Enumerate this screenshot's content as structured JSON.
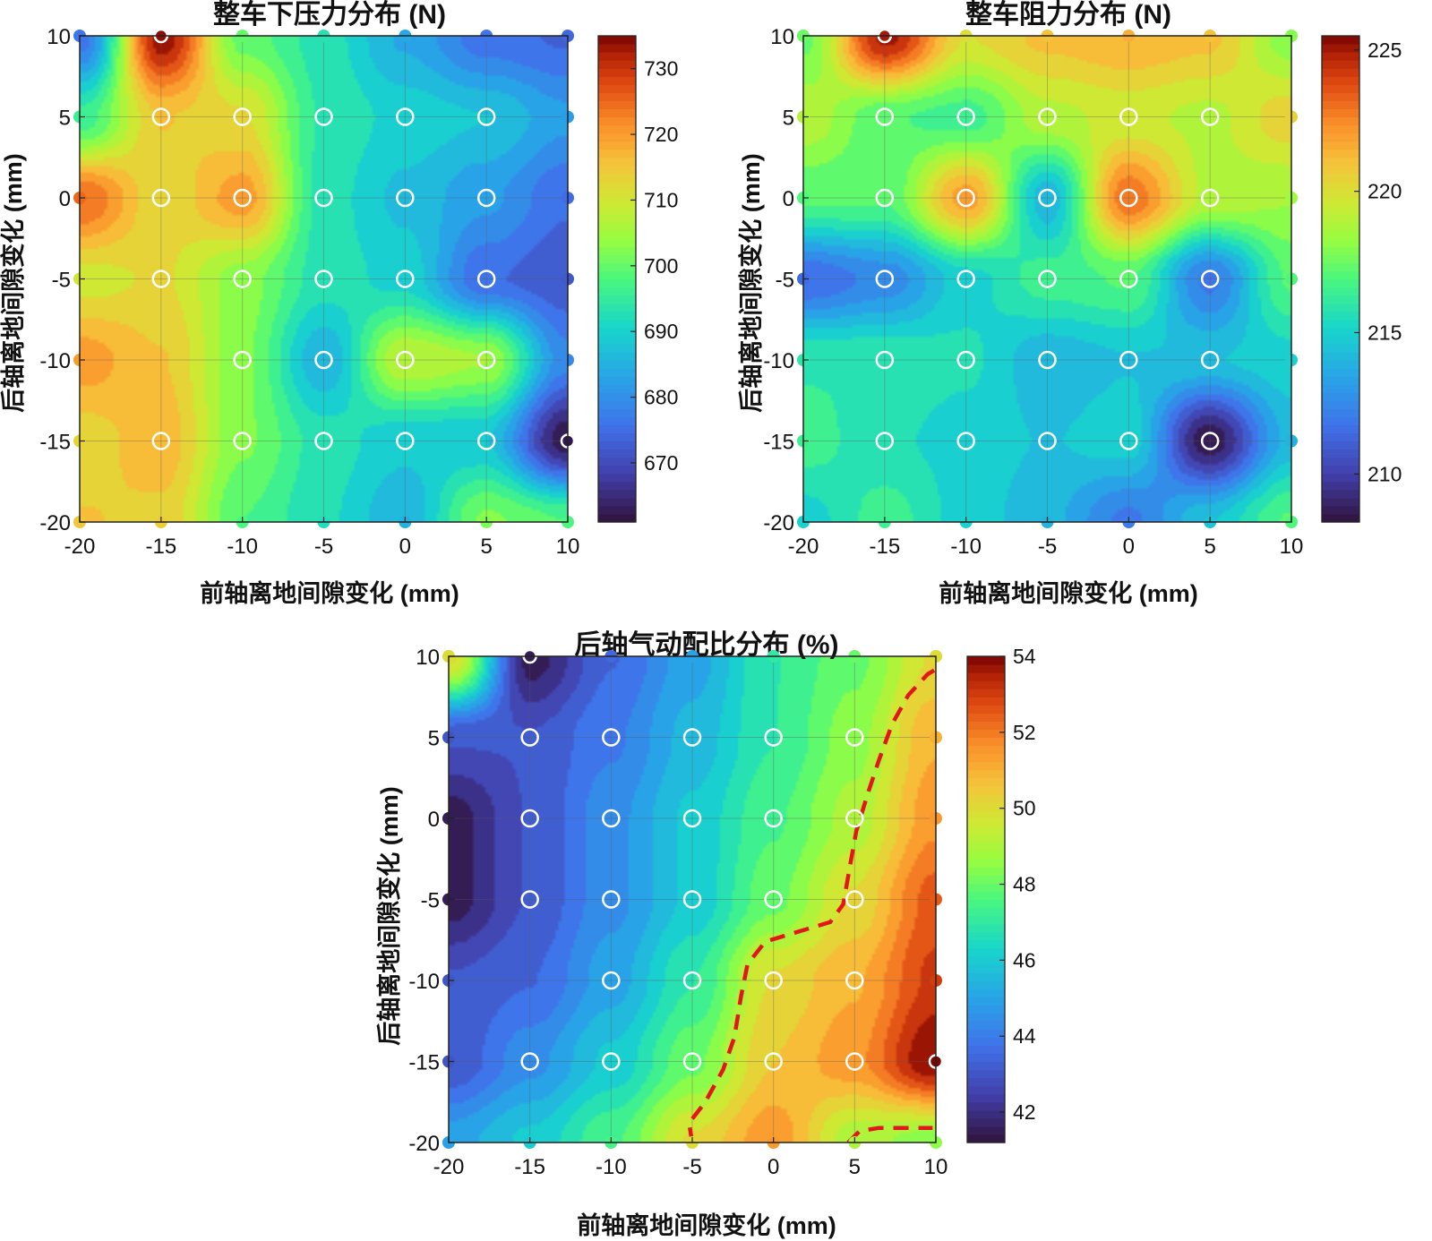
{
  "chart_data": [
    {
      "type": "heatmap",
      "title": "整车下压力分布 (N)",
      "xlabel": "前轴离地间隙变化 (mm)",
      "ylabel": "后轴离地间隙变化 (mm)",
      "x": [
        -20,
        -15,
        -10,
        -5,
        0,
        5,
        10
      ],
      "y": [
        10,
        5,
        0,
        -5,
        -10,
        -15,
        -20
      ],
      "xticks": [
        "-20",
        "-15",
        "-10",
        "-5",
        "0",
        "5",
        "10"
      ],
      "yticks": [
        "10",
        "5",
        "0",
        "-5",
        "-10",
        "-15",
        "-20"
      ],
      "xlim": [
        -20,
        10
      ],
      "ylim": [
        -20,
        10
      ],
      "z": [
        [
          676,
          734,
          700,
          693,
          684,
          676,
          674
        ],
        [
          696,
          715,
          712,
          694,
          690,
          688,
          682
        ],
        [
          725,
          712,
          720,
          693,
          687,
          682,
          675
        ],
        [
          710,
          712,
          703,
          693,
          690,
          675,
          672
        ],
        [
          720,
          715,
          702,
          685,
          708,
          705,
          679
        ],
        [
          713,
          717,
          702,
          693,
          689,
          688,
          662
        ],
        [
          715,
          714,
          698,
          692,
          685,
          702,
          698
        ]
      ],
      "colorbar": {
        "min": 661,
        "max": 735,
        "ticks": [
          "670",
          "680",
          "690",
          "700",
          "710",
          "720",
          "730"
        ]
      },
      "grid": true
    },
    {
      "type": "heatmap",
      "title": "整车阻力分布 (N)",
      "xlabel": "前轴离地间隙变化 (mm)",
      "ylabel": "后轴离地间隙变化 (mm)",
      "x": [
        -20,
        -15,
        -10,
        -5,
        0,
        5,
        10
      ],
      "y": [
        10,
        5,
        0,
        -5,
        -10,
        -15,
        -20
      ],
      "xticks": [
        "-20",
        "-15",
        "-10",
        "-5",
        "0",
        "5",
        "10"
      ],
      "yticks": [
        "10",
        "5",
        "0",
        "-5",
        "-10",
        "-15",
        "-20"
      ],
      "xlim": [
        -20,
        10
      ],
      "ylim": [
        -20,
        10
      ],
      "z": [
        [
          217.5,
          225,
          220,
          221,
          221.5,
          221,
          218
        ],
        [
          219,
          217,
          216.5,
          219,
          219.5,
          219,
          220.5
        ],
        [
          217,
          217,
          222,
          214,
          223,
          219,
          218.5
        ],
        [
          211.5,
          212.5,
          215,
          216.5,
          217,
          212,
          217
        ],
        [
          216,
          216,
          215.5,
          214,
          214.5,
          214.5,
          215
        ],
        [
          216.5,
          215.5,
          215,
          214.5,
          215,
          208.5,
          214
        ],
        [
          215,
          216.5,
          215,
          214,
          212,
          214.5,
          217
        ]
      ],
      "colorbar": {
        "min": 208.3,
        "max": 225.5,
        "ticks": [
          "210",
          "215",
          "220",
          "225"
        ]
      },
      "grid": true
    },
    {
      "type": "heatmap",
      "title": "后轴气动配比分布 (%)",
      "xlabel": "前轴离地间隙变化 (mm)",
      "ylabel": "后轴离地间隙变化 (mm)",
      "x": [
        -20,
        -15,
        -10,
        -5,
        0,
        5,
        10
      ],
      "y": [
        10,
        5,
        0,
        -5,
        -10,
        -15,
        -20
      ],
      "xticks": [
        "-20",
        "-15",
        "-10",
        "-5",
        "0",
        "5",
        "10"
      ],
      "yticks": [
        "10",
        "5",
        "0",
        "-5",
        "-10",
        "-15",
        "-20"
      ],
      "xlim": [
        -20,
        10
      ],
      "ylim": [
        -20,
        10
      ],
      "z": [
        [
          50,
          41.5,
          43.5,
          45,
          47,
          48,
          50
        ],
        [
          43,
          43,
          44,
          45.5,
          47,
          48.5,
          51
        ],
        [
          41.5,
          43,
          44.5,
          46,
          47.5,
          49,
          51.5
        ],
        [
          41.5,
          43,
          44.5,
          46,
          48,
          50,
          52.5
        ],
        [
          43,
          43.5,
          45,
          47,
          50,
          51,
          53
        ],
        [
          43,
          44.5,
          46,
          48,
          50.5,
          51.5,
          54
        ],
        [
          45,
          46,
          47.5,
          50,
          51.5,
          49,
          48.5
        ]
      ],
      "colorbar": {
        "min": 41.2,
        "max": 54.0,
        "ticks": [
          "42",
          "44",
          "46",
          "48",
          "50",
          "52",
          "54"
        ]
      },
      "annotation": "red dashed contour line at 50%",
      "grid": true
    }
  ]
}
